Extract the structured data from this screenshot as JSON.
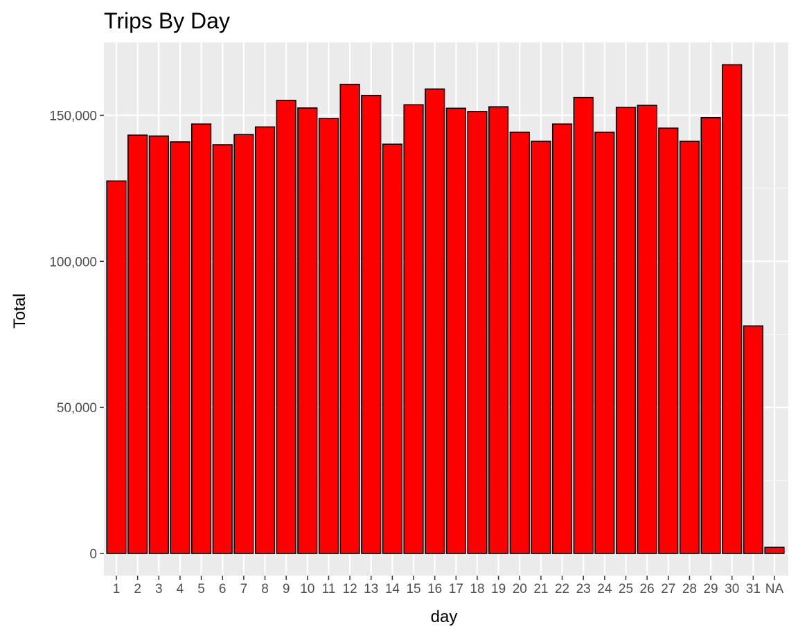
{
  "colors": {
    "panel_background": "#ebebeb",
    "grid_major": "#ffffff",
    "grid_minor": "#f7f7f7",
    "bar_fill": "#ff0000",
    "bar_outline": "#000000",
    "tick_text": "#4d4d4d",
    "axis_text": "#000000"
  },
  "chart_data": {
    "type": "bar",
    "title": "Trips By Day",
    "xlabel": "day",
    "ylabel": "Total",
    "categories": [
      "1",
      "2",
      "3",
      "4",
      "5",
      "6",
      "7",
      "8",
      "9",
      "10",
      "11",
      "12",
      "13",
      "14",
      "15",
      "16",
      "17",
      "18",
      "19",
      "20",
      "21",
      "22",
      "23",
      "24",
      "25",
      "26",
      "27",
      "28",
      "29",
      "30",
      "31",
      "NA"
    ],
    "values": [
      127500,
      143200,
      142900,
      140900,
      147000,
      139900,
      143400,
      146000,
      155100,
      152500,
      148900,
      160600,
      156800,
      140100,
      153600,
      159000,
      152400,
      151300,
      152900,
      144200,
      141100,
      147000,
      156100,
      144200,
      152700,
      153400,
      145600,
      141100,
      149200,
      167300,
      77900,
      2100
    ],
    "ylim": [
      0,
      175000
    ],
    "y_ticks": [
      0,
      50000,
      100000,
      150000
    ],
    "y_tick_labels": [
      "0",
      "50,000",
      "100,000",
      "150,000"
    ],
    "grid": true,
    "legend": "none"
  }
}
